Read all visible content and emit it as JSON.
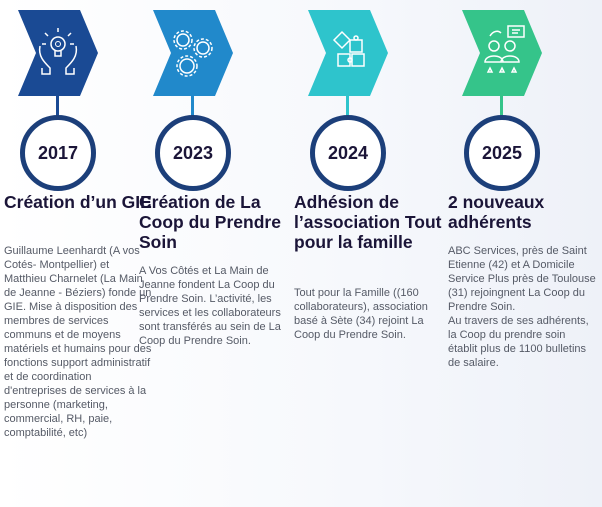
{
  "colors": {
    "step1": "#1a4a94",
    "step2": "#2189cb",
    "step3": "#2ec4cc",
    "step4": "#35c48a",
    "circle_border": "#1c3f7a"
  },
  "steps": [
    {
      "year": "2017",
      "icon": "hands-lightbulb-icon",
      "title": "Création d’un GIE",
      "body": "Guillaume Leenhardt (A vos Cotés- Montpellier) et Matthieu Charnelet (La Main de Jeanne - Béziers) fonde un GIE. Mise à disposition des membres de services communs et de moyens matériels et humains pour des fonctions support administratif et de coordination d'entreprises de services à la personne (marketing, commercial, RH, paie, comptabilité, etc)"
    },
    {
      "year": "2023",
      "icon": "gears-icon",
      "title": "Création de La Coop du Prendre Soin",
      "body": "A Vos Côtés et La Main de Jeanne fondent La Coop du Prendre Soin. L’activité, les services et les collaborateurs sont transférés au sein de La Coop du Prendre Soin."
    },
    {
      "year": "2024",
      "icon": "puzzle-icon",
      "title": "Adhésion de l’association Tout pour la famille",
      "body": "Tout pour la Famille ((160 collaborateurs), association basé à Sète (34) rejoint La Coop du Prendre Soin."
    },
    {
      "year": "2025",
      "icon": "people-rating-icon",
      "title": "2 nouveaux adhérents",
      "body": "ABC Services, près de Saint Etienne (42) et A Domicile Service Plus près de Toulouse (31) rejoingnent La Coop du Prendre Soin.\nAu travers de ses adhérents, la Coop du prendre soin établit plus de 1100 bulletins de salaire."
    }
  ]
}
